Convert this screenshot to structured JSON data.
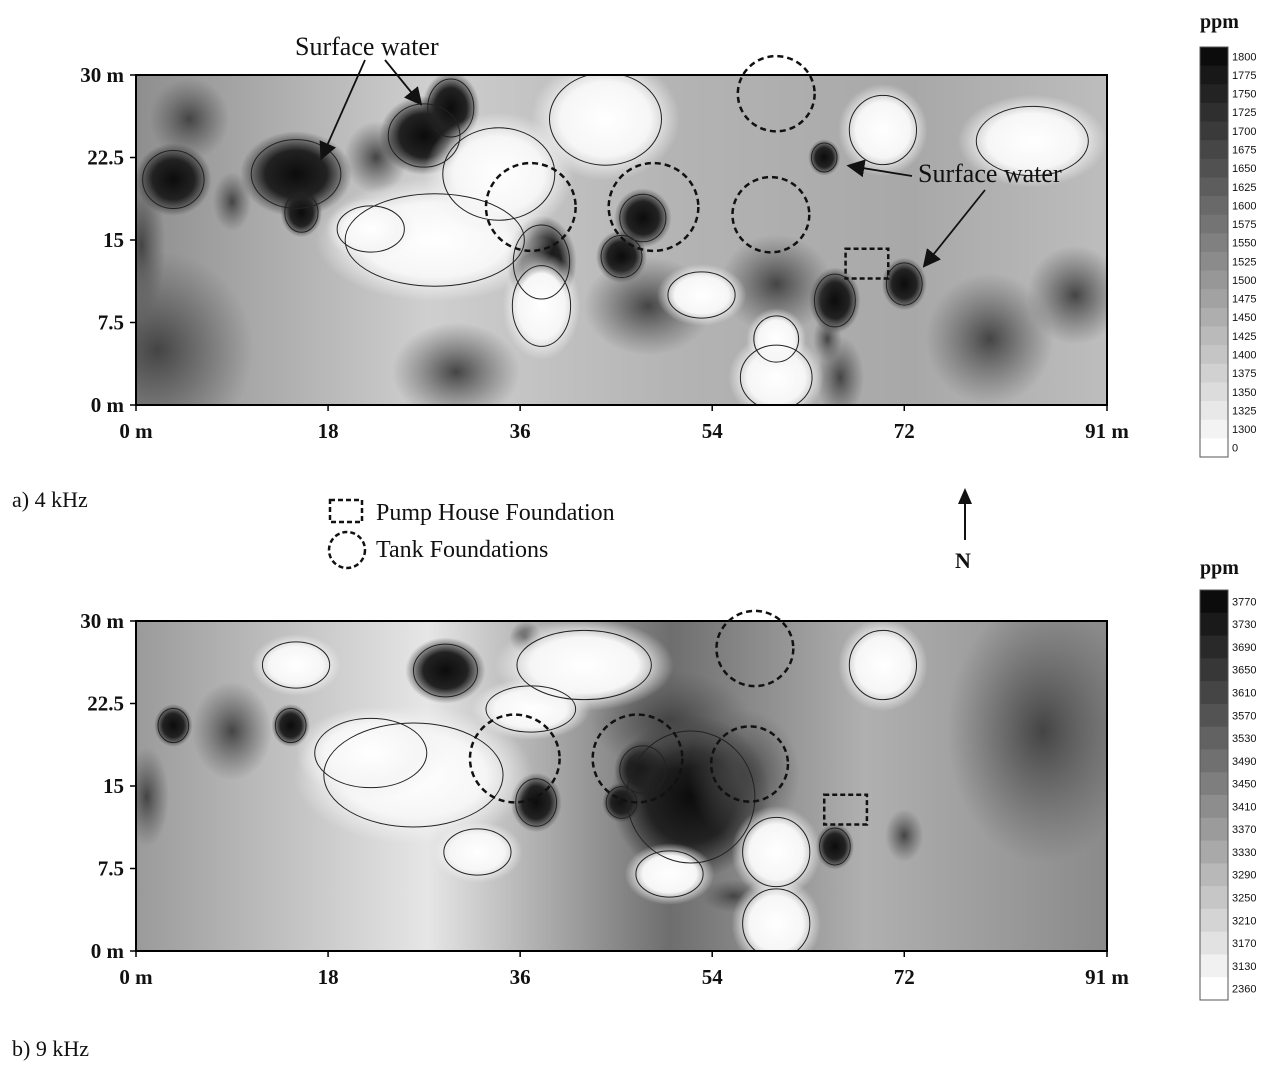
{
  "chart_data": [
    {
      "type": "heatmap",
      "panel_label": "a) 4 kHz",
      "x_ticks": [
        "0 m",
        "18",
        "36",
        "54",
        "72",
        "91 m"
      ],
      "x_tick_values": [
        0,
        18,
        36,
        54,
        72,
        91
      ],
      "y_ticks": [
        "0 m",
        "7.5",
        "15",
        "22.5",
        "30 m"
      ],
      "y_tick_values": [
        0,
        7.5,
        15,
        22.5,
        30
      ],
      "xlim": [
        0,
        91
      ],
      "ylim": [
        0,
        30
      ],
      "colorbar": {
        "unit": "ppm",
        "levels": [
          "1800",
          "1775",
          "1750",
          "1725",
          "1700",
          "1675",
          "1650",
          "1625",
          "1600",
          "1575",
          "1550",
          "1525",
          "1500",
          "1475",
          "1450",
          "1425",
          "1400",
          "1375",
          "1350",
          "1325",
          "1300",
          "0"
        ]
      },
      "annotations": [
        {
          "text": "Surface water",
          "x": 23,
          "y": 32
        },
        {
          "text": "Surface water",
          "x": 84,
          "y": 21
        }
      ],
      "tank_foundations": [
        {
          "x": 37,
          "y": 18,
          "r": 4.2
        },
        {
          "x": 48.5,
          "y": 18,
          "r": 4.2
        },
        {
          "x": 59.5,
          "y": 17.3,
          "r": 3.6
        },
        {
          "x": 60,
          "y": 28.3,
          "r": 3.6
        }
      ],
      "pump_house_foundation": {
        "x0": 66.5,
        "x1": 70.5,
        "y0": 11.5,
        "y1": 14.2
      }
    },
    {
      "type": "heatmap",
      "panel_label": "b) 9 kHz",
      "x_ticks": [
        "0 m",
        "18",
        "36",
        "54",
        "72",
        "91 m"
      ],
      "x_tick_values": [
        0,
        18,
        36,
        54,
        72,
        91
      ],
      "y_ticks": [
        "0 m",
        "7.5",
        "15",
        "22.5",
        "30 m"
      ],
      "y_tick_values": [
        0,
        7.5,
        15,
        22.5,
        30
      ],
      "xlim": [
        0,
        91
      ],
      "ylim": [
        0,
        30
      ],
      "colorbar": {
        "unit": "ppm",
        "levels": [
          "3770",
          "3730",
          "3690",
          "3650",
          "3610",
          "3570",
          "3530",
          "3490",
          "3450",
          "3410",
          "3370",
          "3330",
          "3290",
          "3250",
          "3210",
          "3170",
          "3130",
          "2360"
        ]
      },
      "tank_foundations": [
        {
          "x": 35.5,
          "y": 17.5,
          "r": 4.2
        },
        {
          "x": 47,
          "y": 17.5,
          "r": 4.2
        },
        {
          "x": 57.5,
          "y": 17.0,
          "r": 3.6
        },
        {
          "x": 58,
          "y": 27.5,
          "r": 3.6
        }
      ],
      "pump_house_foundation": {
        "x0": 64.5,
        "x1": 68.5,
        "y0": 11.5,
        "y1": 14.2
      }
    }
  ],
  "legend": {
    "pump_house": "Pump House Foundation",
    "tanks": "Tank Foundations",
    "north": "N"
  },
  "colors": {
    "dark": "#141414",
    "light": "#ffffff",
    "frame": "#000000"
  }
}
